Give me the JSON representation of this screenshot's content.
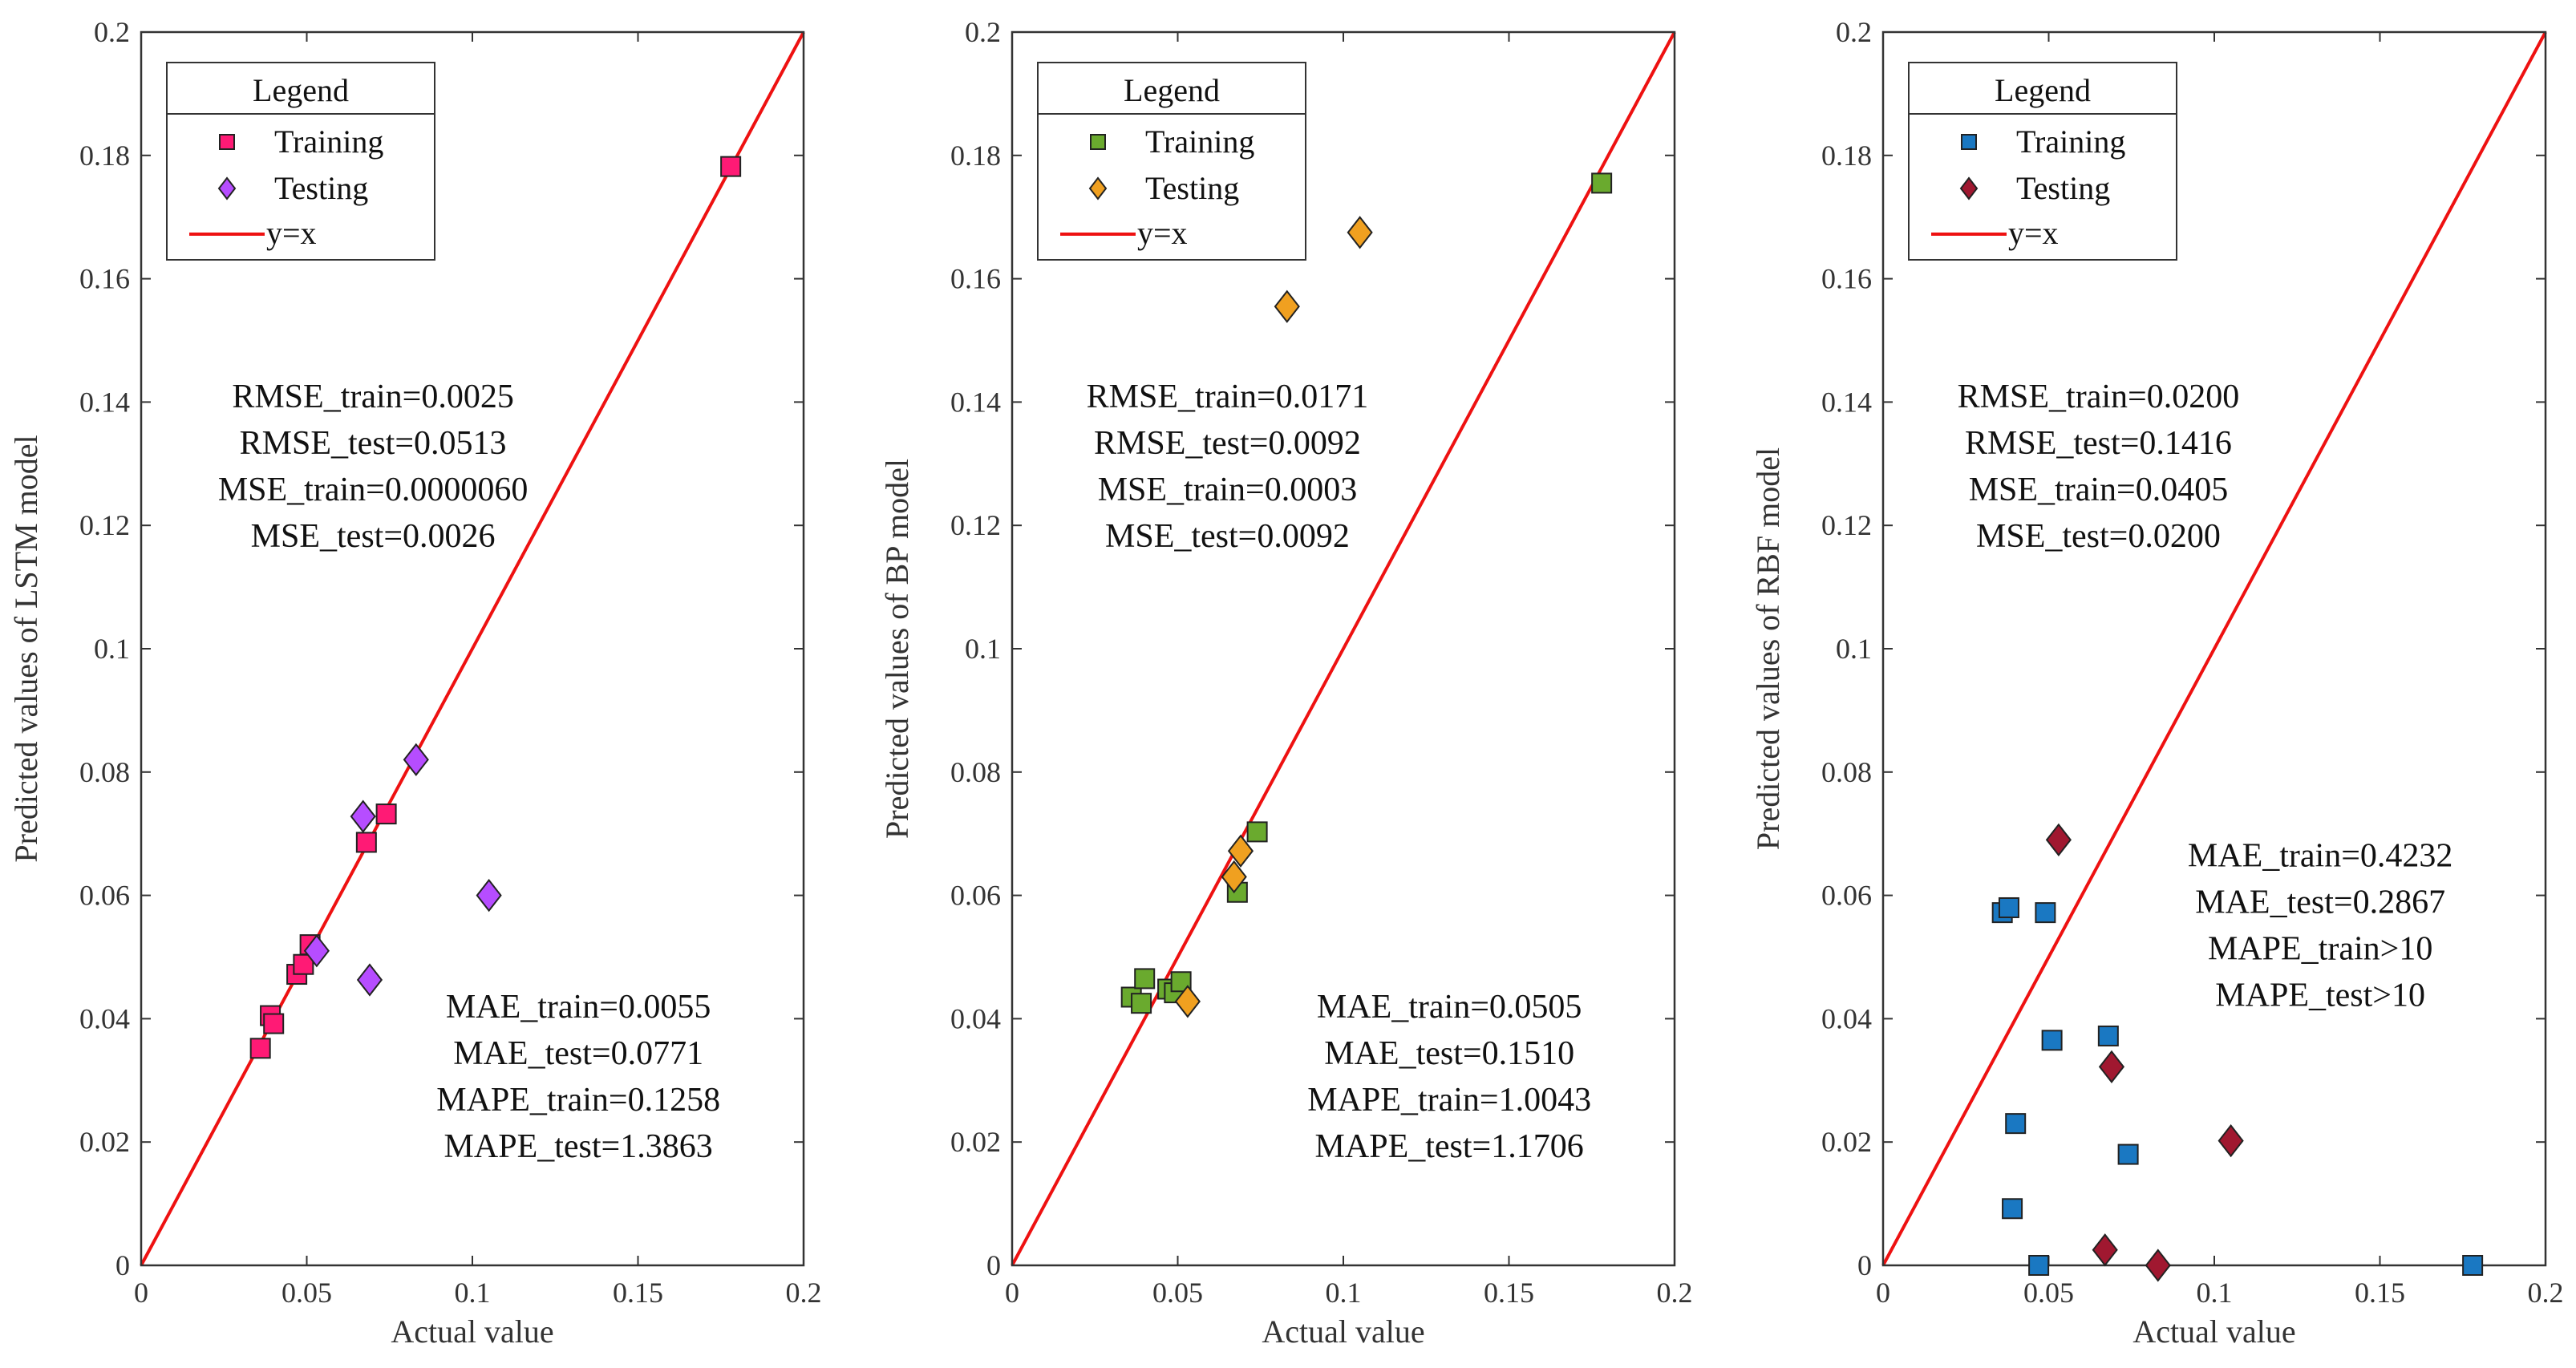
{
  "chart_data": [
    {
      "type": "scatter",
      "xlabel": "Actual value",
      "ylabel": "Predicted values of LSTM model",
      "xlim": [
        0,
        0.2
      ],
      "ylim": [
        0,
        0.2
      ],
      "xticks": [
        0,
        0.05,
        0.1,
        0.15,
        0.2
      ],
      "xtick_labels": [
        "0",
        "0.05",
        "0.1",
        "0.15",
        "0.2"
      ],
      "yticks": [
        0,
        0.02,
        0.04,
        0.06,
        0.08,
        0.1,
        0.12,
        0.14,
        0.16,
        0.18,
        0.2
      ],
      "ytick_labels": [
        "0",
        "0.02",
        "0.04",
        "0.06",
        "0.08",
        "0.1",
        "0.12",
        "0.14",
        "0.16",
        "0.18",
        "0.2"
      ],
      "legend": {
        "title": "Legend",
        "training": "Training",
        "testing": "Testing",
        "line": "y=x",
        "position": "top-left"
      },
      "colors": {
        "training": "#ff1a75",
        "testing": "#b64dff",
        "line": "#ee1111"
      },
      "series": [
        {
          "name": "Training",
          "marker": "square",
          "x": [
            0.036,
            0.039,
            0.04,
            0.047,
            0.049,
            0.051,
            0.068,
            0.074,
            0.178
          ],
          "y": [
            0.0352,
            0.0405,
            0.0392,
            0.0472,
            0.0488,
            0.052,
            0.0686,
            0.0732,
            0.1782
          ]
        },
        {
          "name": "Testing",
          "marker": "diamond",
          "x": [
            0.053,
            0.067,
            0.069,
            0.083,
            0.105
          ],
          "y": [
            0.051,
            0.0728,
            0.0463,
            0.082,
            0.06
          ]
        }
      ],
      "stats_top": [
        "RMSE_train=0.0025",
        "RMSE_test=0.0513",
        "MSE_train=0.0000060",
        "MSE_test=0.0026"
      ],
      "stats_bottom": [
        "MAE_train=0.0055",
        "MAE_test=0.0771",
        "MAPE_train=0.1258",
        "MAPE_test=1.3863"
      ]
    },
    {
      "type": "scatter",
      "xlabel": "Actual value",
      "ylabel": "Predicted values of BP model",
      "xlim": [
        0,
        0.2
      ],
      "ylim": [
        0,
        0.2
      ],
      "xticks": [
        0,
        0.05,
        0.1,
        0.15,
        0.2
      ],
      "xtick_labels": [
        "0",
        "0.05",
        "0.1",
        "0.15",
        "0.2"
      ],
      "yticks": [
        0,
        0.02,
        0.04,
        0.06,
        0.08,
        0.1,
        0.12,
        0.14,
        0.16,
        0.18,
        0.2
      ],
      "ytick_labels": [
        "0",
        "0.02",
        "0.04",
        "0.06",
        "0.08",
        "0.1",
        "0.12",
        "0.14",
        "0.16",
        "0.18",
        "0.2"
      ],
      "legend": {
        "title": "Legend",
        "training": "Training",
        "testing": "Testing",
        "line": "y=x",
        "position": "top-left"
      },
      "colors": {
        "training": "#6aaa2e",
        "testing": "#f0a020",
        "line": "#ee1111"
      },
      "series": [
        {
          "name": "Training",
          "marker": "square",
          "x": [
            0.036,
            0.039,
            0.04,
            0.047,
            0.049,
            0.051,
            0.068,
            0.074,
            0.178
          ],
          "y": [
            0.0435,
            0.0425,
            0.0465,
            0.0448,
            0.0442,
            0.046,
            0.0605,
            0.0703,
            0.1755
          ]
        },
        {
          "name": "Testing",
          "marker": "diamond",
          "x": [
            0.053,
            0.067,
            0.069,
            0.083,
            0.105
          ],
          "y": [
            0.0428,
            0.063,
            0.0672,
            0.1555,
            0.1675
          ]
        }
      ],
      "stats_top": [
        "RMSE_train=0.0171",
        "RMSE_test=0.0092",
        "MSE_train=0.0003",
        "MSE_test=0.0092"
      ],
      "stats_bottom": [
        "MAE_train=0.0505",
        "MAE_test=0.1510",
        "MAPE_train=1.0043",
        "MAPE_test=1.1706"
      ]
    },
    {
      "type": "scatter",
      "xlabel": "Actual value",
      "ylabel": "Predicted values of RBF model",
      "xlim": [
        0,
        0.2
      ],
      "ylim": [
        0,
        0.2
      ],
      "xticks": [
        0,
        0.05,
        0.1,
        0.15,
        0.2
      ],
      "xtick_labels": [
        "0",
        "0.05",
        "0.1",
        "0.15",
        "0.2"
      ],
      "yticks": [
        0,
        0.02,
        0.04,
        0.06,
        0.08,
        0.1,
        0.12,
        0.14,
        0.16,
        0.18,
        0.2
      ],
      "ytick_labels": [
        "0",
        "0.02",
        "0.04",
        "0.06",
        "0.08",
        "0.1",
        "0.12",
        "0.14",
        "0.16",
        "0.18",
        "0.2"
      ],
      "legend": {
        "title": "Legend",
        "training": "Training",
        "testing": "Testing",
        "line": "y=x",
        "position": "top-left"
      },
      "colors": {
        "training": "#1a78c2",
        "testing": "#a01830",
        "line": "#ee1111"
      },
      "series": [
        {
          "name": "Training",
          "marker": "square",
          "x": [
            0.036,
            0.038,
            0.039,
            0.04,
            0.047,
            0.049,
            0.051,
            0.068,
            0.074,
            0.178
          ],
          "y": [
            0.0572,
            0.058,
            0.0092,
            0.023,
            0.0,
            0.0572,
            0.0365,
            0.0372,
            0.018,
            0.0
          ]
        },
        {
          "name": "Testing",
          "marker": "diamond",
          "x": [
            0.053,
            0.067,
            0.069,
            0.083,
            0.105
          ],
          "y": [
            0.069,
            0.0025,
            0.0322,
            0.0,
            0.0202
          ]
        }
      ],
      "stats_top": [
        "RMSE_train=0.0200",
        "RMSE_test=0.1416",
        "MSE_train=0.0405",
        "MSE_test=0.0200"
      ],
      "stats_bottom": [
        "MAE_train=0.4232",
        "MAE_test=0.2867",
        "MAPE_train>10",
        "MAPE_test>10"
      ]
    }
  ]
}
